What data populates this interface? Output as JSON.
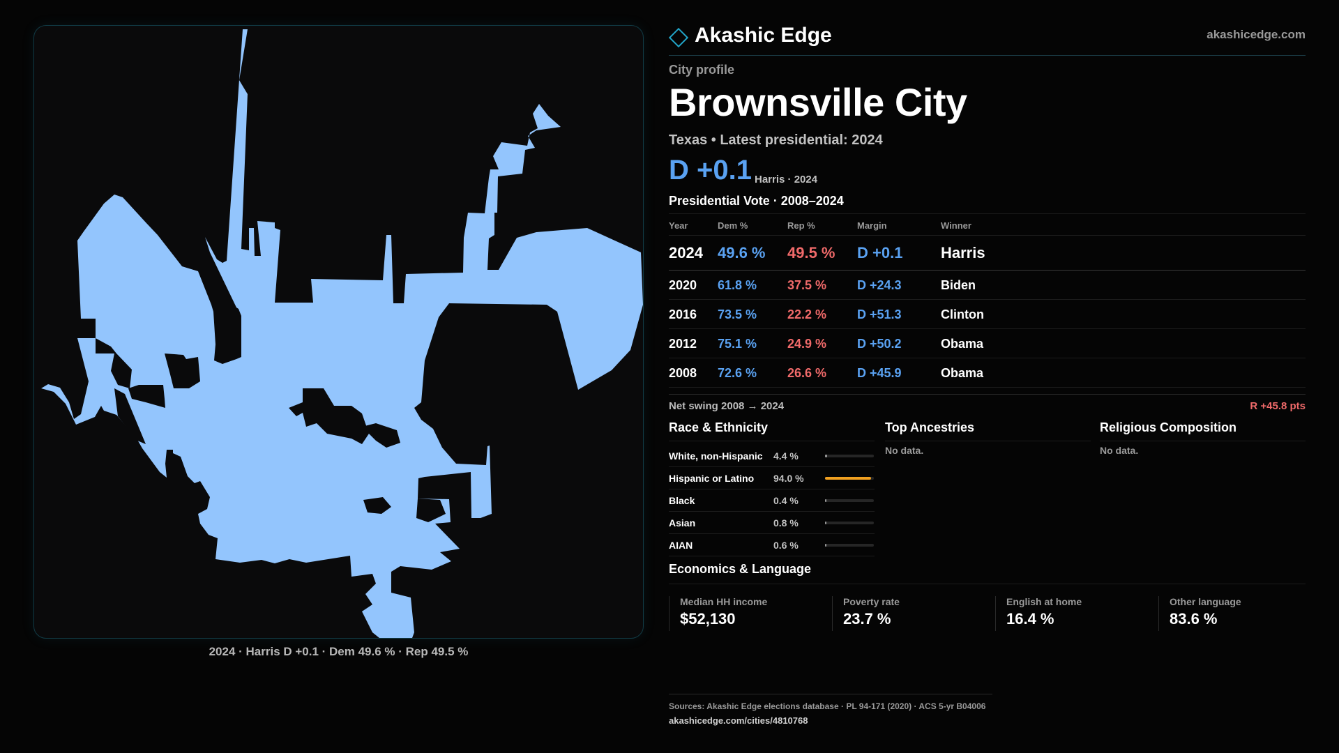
{
  "brand": {
    "name": "Akashic Edge",
    "url": "akashicedge.com"
  },
  "profile": {
    "eyebrow": "City profile",
    "city": "Brownsville City",
    "subtitle": "Texas • Latest presidential: 2024",
    "margin": "D +0.1",
    "margin_note": "Harris · 2024"
  },
  "map": {
    "fill_color": "#93c5fd",
    "caption": "2024 · Harris D +0.1 · Dem 49.6 % · Rep 49.5 %"
  },
  "presidential": {
    "title": "Presidential Vote · 2008–2024",
    "headers": [
      "Year",
      "Dem %",
      "Rep %",
      "Margin",
      "Winner"
    ],
    "rows": [
      [
        "2024",
        "49.6 %",
        "49.5 %",
        "D +0.1",
        "Harris"
      ],
      [
        "2020",
        "61.8 %",
        "37.5 %",
        "D +24.3",
        "Biden"
      ],
      [
        "2016",
        "73.5 %",
        "22.2 %",
        "D +51.3",
        "Clinton"
      ],
      [
        "2012",
        "75.1 %",
        "24.9 %",
        "D +50.2",
        "Obama"
      ],
      [
        "2008",
        "72.6 %",
        "26.6 %",
        "D +45.9",
        "Obama"
      ]
    ],
    "swing_label": "Net swing 2008 → 2024",
    "swing_value": "R +45.8 pts"
  },
  "race": {
    "title": "Race & Ethnicity",
    "rows": [
      {
        "name": "White, non-Hispanic",
        "pct": "4.4 %",
        "share": 0.044,
        "color": "#9a9a9a"
      },
      {
        "name": "Hispanic or Latino",
        "pct": "94.0 %",
        "share": 0.94,
        "color": "#f0a020"
      },
      {
        "name": "Black",
        "pct": "0.4 %",
        "share": 0.004,
        "color": "#9a9a9a"
      },
      {
        "name": "Asian",
        "pct": "0.8 %",
        "share": 0.008,
        "color": "#9a9a9a"
      },
      {
        "name": "AIAN",
        "pct": "0.6 %",
        "share": 0.006,
        "color": "#9a9a9a"
      }
    ]
  },
  "ancestries": {
    "title": "Top Ancestries",
    "empty": "No data."
  },
  "religion": {
    "title": "Religious Composition",
    "empty": "No data."
  },
  "economics": {
    "title": "Economics & Language",
    "stats": [
      {
        "label": "Median HH income",
        "value": "$52,130"
      },
      {
        "label": "Poverty rate",
        "value": "23.7 %"
      },
      {
        "label": "English at home",
        "value": "16.4 %"
      },
      {
        "label": "Other language",
        "value": "83.6 %"
      }
    ]
  },
  "sources": {
    "text": "Sources: Akashic Edge elections database · PL 94-171 (2020) · ACS 5-yr B04006",
    "url": "akashicedge.com/cities/4810768"
  }
}
